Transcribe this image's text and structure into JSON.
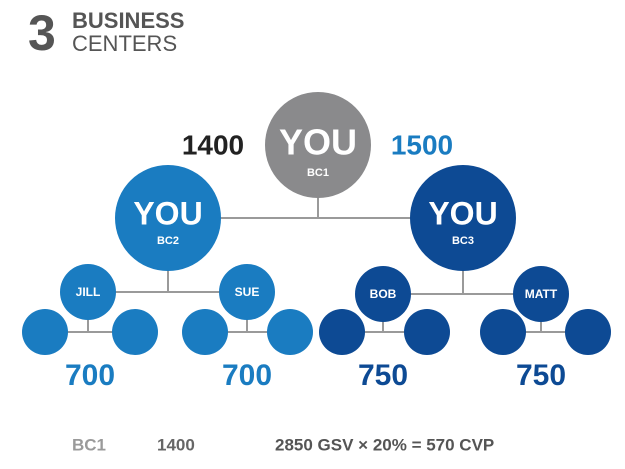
{
  "header": {
    "number": "3",
    "line1": "BUSINESS",
    "line2": "CENTERS"
  },
  "nodes": [
    {
      "label": "YOU",
      "sublabel": "BC1"
    },
    {
      "label": "YOU",
      "sublabel": "BC2"
    },
    {
      "label": "YOU",
      "sublabel": "BC3"
    }
  ],
  "volumes": {
    "left": 1400,
    "right": 1500
  },
  "members": [
    "JILL",
    "SUE",
    "BOB",
    "MATT"
  ],
  "leg_volumes": [
    700,
    700,
    750,
    750
  ],
  "footer": {
    "center": "BC1",
    "volume": 1400,
    "equation": "2850 GSV × 20% = 570 CVP"
  }
}
